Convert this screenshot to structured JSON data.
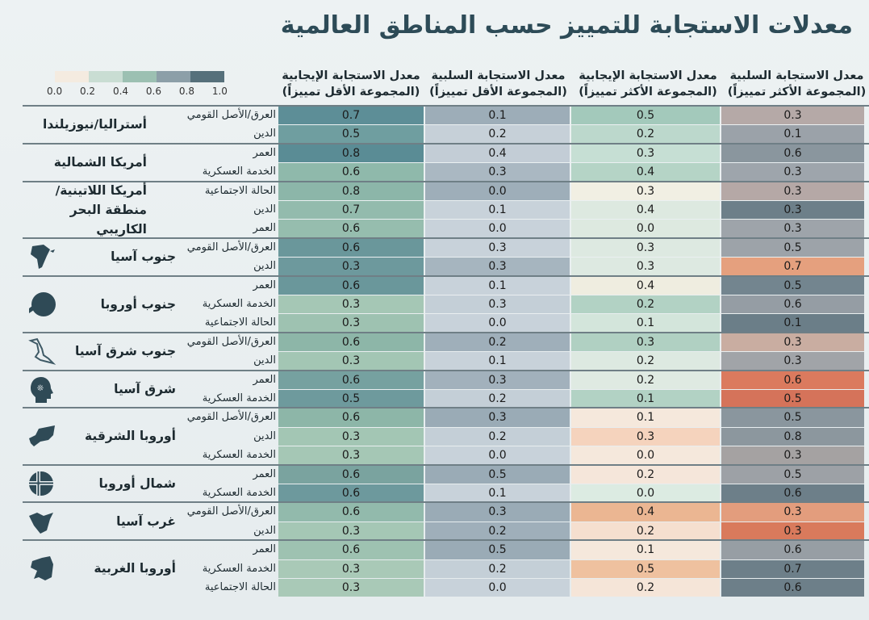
{
  "title": "معدلات الاستجابة للتمييز حسب المناطق العالمية",
  "chart_data": {
    "type": "heatmap",
    "title": "معدلات الاستجابة للتمييز حسب المناطق العالمية",
    "legend": {
      "placement": "top-left",
      "ticks": [
        "0.0",
        "0.2",
        "0.4",
        "0.6",
        "0.8",
        "1.0"
      ],
      "colors": [
        "#f4ebe0",
        "#c9ddd3",
        "#9cc0b2",
        "#8c9fa8",
        "#56707b"
      ]
    },
    "columns": [
      "معدل الاستجابة الإيجابية (المجموعة الأقل تمييزاً)",
      "معدل الاستجابة السلبية (المجموعة الأقل تمييزاً)",
      "معدل الاستجابة الإيجابية (المجموعة الأكثر تمييزاً)",
      "معدل الاستجابة السلبية (المجموعة الأكثر تمييزاً)"
    ],
    "column_lines": [
      [
        "معدل الاستجابة الإيجابية",
        "(المجموعة الأقل تمييزاً)"
      ],
      [
        "معدل الاستجابة السلبية",
        "(المجموعة الأقل تمييزاً)"
      ],
      [
        "معدل الاستجابة الإيجابية",
        "(المجموعة الأكثر تمييزاً)"
      ],
      [
        "معدل الاستجابة السلبية",
        "(المجموعة الأكثر تمييزاً)"
      ]
    ],
    "regions": [
      {
        "name": "أستراليا/نيوزيلندا",
        "icon": "",
        "rows": [
          {
            "subgroup": "العرق/الأصل القومي",
            "values": [
              0.7,
              0.1,
              0.5,
              0.3
            ],
            "colors": [
              "#5d8e97",
              "#9dadb8",
              "#a3c9bb",
              "#b5a9a7"
            ]
          },
          {
            "subgroup": "الدين",
            "values": [
              0.5,
              0.2,
              0.2,
              0.1
            ],
            "colors": [
              "#6f9ea0",
              "#c6d0d8",
              "#bcd8cc",
              "#9ba2a9"
            ]
          }
        ]
      },
      {
        "name": "أمريكا الشمالية",
        "icon": "",
        "rows": [
          {
            "subgroup": "العمر",
            "values": [
              0.8,
              0.4,
              0.3,
              0.6
            ],
            "colors": [
              "#5a8c95",
              "#c3cdd6",
              "#c6dfd4",
              "#8a969e"
            ]
          },
          {
            "subgroup": "الخدمة العسكرية",
            "values": [
              0.6,
              0.3,
              0.4,
              0.3
            ],
            "colors": [
              "#8fb9ab",
              "#aab8c2",
              "#b5d4c6",
              "#9ea5ac"
            ]
          }
        ]
      },
      {
        "name": "أمريكا اللاتينية/منطقة البحر الكاريبي",
        "icon": "",
        "rows": [
          {
            "subgroup": "الحالة الاجتماعية",
            "values": [
              0.8,
              0.0,
              0.3,
              0.3
            ],
            "colors": [
              "#8cb6a9",
              "#9eaeb9",
              "#f1efe3",
              "#b5a8a6"
            ]
          },
          {
            "subgroup": "الدين",
            "values": [
              0.7,
              0.1,
              0.4,
              0.3
            ],
            "colors": [
              "#93bbad",
              "#c8d2da",
              "#dde9e0",
              "#6d7f89"
            ]
          },
          {
            "subgroup": "العمر",
            "values": [
              0.6,
              0.0,
              0.0,
              0.3
            ],
            "colors": [
              "#96bdae",
              "#c8d2da",
              "#dde9e0",
              "#9ea4aa"
            ]
          }
        ]
      },
      {
        "name": "جنوب آسيا",
        "icon": "india-map-icon",
        "rows": [
          {
            "subgroup": "العرق/الأصل القومي",
            "values": [
              0.6,
              0.3,
              0.3,
              0.5
            ],
            "colors": [
              "#6a979b",
              "#c8d2da",
              "#dde9e1",
              "#9da3a9"
            ]
          },
          {
            "subgroup": "الدين",
            "values": [
              0.3,
              0.3,
              0.3,
              0.7
            ],
            "colors": [
              "#6d999d",
              "#a6b5bf",
              "#dde9e1",
              "#e5a07e"
            ]
          }
        ]
      },
      {
        "name": "جنوب أوروبا",
        "icon": "europe-globe-icon",
        "rows": [
          {
            "subgroup": "العمر",
            "values": [
              0.6,
              0.1,
              0.4,
              0.5
            ],
            "colors": [
              "#6a979b",
              "#c8d2da",
              "#efede0",
              "#73858f"
            ]
          },
          {
            "subgroup": "الخدمة العسكرية",
            "values": [
              0.3,
              0.3,
              0.2,
              0.6
            ],
            "colors": [
              "#a5c7b5",
              "#c4cfd7",
              "#b2d2c4",
              "#959da4"
            ]
          },
          {
            "subgroup": "الحالة الاجتماعية",
            "values": [
              0.3,
              0.0,
              0.1,
              0.1
            ],
            "colors": [
              "#9ec2b1",
              "#c8d2da",
              "#d3e5db",
              "#6b7e88"
            ]
          }
        ]
      },
      {
        "name": "جنوب شرق آسيا",
        "icon": "southeast-asia-map-icon",
        "rows": [
          {
            "subgroup": "العرق/الأصل القومي",
            "values": [
              0.6,
              0.2,
              0.3,
              0.3
            ],
            "colors": [
              "#8db6a8",
              "#9fafba",
              "#b0d0c2",
              "#c9ada1"
            ]
          },
          {
            "subgroup": "الدين",
            "values": [
              0.3,
              0.1,
              0.2,
              0.3
            ],
            "colors": [
              "#a3c6b4",
              "#c8d2da",
              "#dde9e1",
              "#a1a4a8"
            ]
          }
        ]
      },
      {
        "name": "شرق آسيا",
        "icon": "head-icon",
        "rows": [
          {
            "subgroup": "العمر",
            "values": [
              0.6,
              0.3,
              0.2,
              0.6
            ],
            "colors": [
              "#76a1a0",
              "#a2b1bc",
              "#dfeae2",
              "#db7a5e"
            ]
          },
          {
            "subgroup": "الخدمة العسكرية",
            "values": [
              0.5,
              0.2,
              0.1,
              0.5
            ],
            "colors": [
              "#6e9a9d",
              "#c4cfd7",
              "#b2d2c4",
              "#d5735a"
            ]
          }
        ]
      },
      {
        "name": "أوروبا الشرقية",
        "icon": "eastern-europe-map-icon",
        "rows": [
          {
            "subgroup": "العرق/الأصل القومي",
            "values": [
              0.6,
              0.3,
              0.1,
              0.5
            ],
            "colors": [
              "#8db6a8",
              "#9aabb6",
              "#f5e8dc",
              "#8a969e"
            ]
          },
          {
            "subgroup": "الدين",
            "values": [
              0.3,
              0.2,
              0.3,
              0.8
            ],
            "colors": [
              "#a3c6b4",
              "#c4cfd7",
              "#f5d3bd",
              "#8c979e"
            ]
          },
          {
            "subgroup": "الخدمة العسكرية",
            "values": [
              0.3,
              0.0,
              0.0,
              0.3
            ],
            "colors": [
              "#a5c7b5",
              "#c8d2da",
              "#f5e8dc",
              "#a5a2a2"
            ]
          }
        ]
      },
      {
        "name": "شمال أوروبا",
        "icon": "nordic-flag-icon",
        "rows": [
          {
            "subgroup": "العمر",
            "values": [
              0.6,
              0.5,
              0.2,
              0.5
            ],
            "colors": [
              "#7aa39f",
              "#9aabb6",
              "#f5e6da",
              "#9da1a6"
            ]
          },
          {
            "subgroup": "الخدمة العسكرية",
            "values": [
              0.6,
              0.1,
              0.0,
              0.6
            ],
            "colors": [
              "#6d999d",
              "#c8d2da",
              "#dcebe2",
              "#6d7f89"
            ]
          }
        ]
      },
      {
        "name": "غرب آسيا",
        "icon": "arabian-peninsula-map-icon",
        "rows": [
          {
            "subgroup": "العرق/الأصل القومي",
            "values": [
              0.6,
              0.3,
              0.4,
              0.3
            ],
            "colors": [
              "#92baac",
              "#9aabb6",
              "#ebb692",
              "#e39d7d"
            ]
          },
          {
            "subgroup": "الدين",
            "values": [
              0.3,
              0.2,
              0.2,
              0.3
            ],
            "colors": [
              "#a5c7b5",
              "#9fafba",
              "#f5dfcf",
              "#d97a5c"
            ]
          }
        ]
      },
      {
        "name": "أوروبا الغربية",
        "icon": "western-europe-map-icon",
        "rows": [
          {
            "subgroup": "العمر",
            "values": [
              0.6,
              0.5,
              0.1,
              0.6
            ],
            "colors": [
              "#9ec2b1",
              "#9aabb6",
              "#f5e8dc",
              "#979ea4"
            ]
          },
          {
            "subgroup": "الخدمة العسكرية",
            "values": [
              0.3,
              0.2,
              0.5,
              0.7
            ],
            "colors": [
              "#a9c9b7",
              "#c4cfd7",
              "#efc19f",
              "#6d7f89"
            ]
          },
          {
            "subgroup": "الحالة الاجتماعية",
            "values": [
              0.3,
              0.0,
              0.2,
              0.6
            ],
            "colors": [
              "#a9c9b7",
              "#c8d2da",
              "#f5e5d8",
              "#6d7f89"
            ]
          }
        ]
      }
    ]
  }
}
